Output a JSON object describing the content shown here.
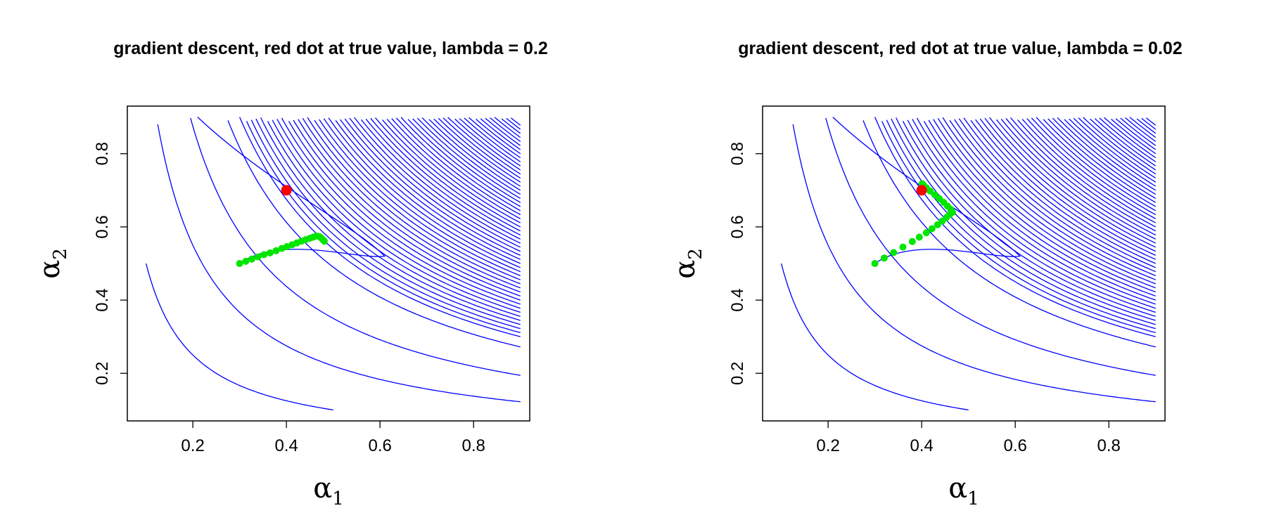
{
  "chart_data": [
    {
      "type": "contour",
      "title": "gradient descent, red dot at true value, lambda = 0.2",
      "xlabel": "α",
      "xlabel_sub": "1",
      "ylabel": "α",
      "ylabel_sub": "2",
      "xlim": [
        0.06,
        0.92
      ],
      "ylim": [
        0.07,
        0.93
      ],
      "xticks": [
        0.2,
        0.4,
        0.6,
        0.8
      ],
      "yticks": [
        0.2,
        0.4,
        0.6,
        0.8
      ],
      "xtick_labels": [
        "0.2",
        "0.4",
        "0.6",
        "0.8"
      ],
      "ytick_labels": [
        "0.2",
        "0.4",
        "0.6",
        "0.8"
      ],
      "contour_color": "#0000ff",
      "true_value": {
        "x": 0.4,
        "y": 0.7,
        "color": "#ff0000"
      },
      "path_color": "#00e600",
      "path": [
        [
          0.3,
          0.5
        ],
        [
          0.313,
          0.506
        ],
        [
          0.326,
          0.512
        ],
        [
          0.339,
          0.518
        ],
        [
          0.352,
          0.524
        ],
        [
          0.365,
          0.529
        ],
        [
          0.378,
          0.535
        ],
        [
          0.39,
          0.541
        ],
        [
          0.401,
          0.546
        ],
        [
          0.412,
          0.551
        ],
        [
          0.422,
          0.556
        ],
        [
          0.432,
          0.561
        ],
        [
          0.441,
          0.565
        ],
        [
          0.45,
          0.569
        ],
        [
          0.457,
          0.572
        ],
        [
          0.464,
          0.575
        ],
        [
          0.47,
          0.574
        ],
        [
          0.474,
          0.57
        ],
        [
          0.478,
          0.565
        ],
        [
          0.481,
          0.561
        ]
      ]
    },
    {
      "type": "contour",
      "title": "gradient descent, red dot at true value, lambda = 0.02",
      "xlabel": "α",
      "xlabel_sub": "1",
      "ylabel": "α",
      "ylabel_sub": "2",
      "xlim": [
        0.06,
        0.92
      ],
      "ylim": [
        0.07,
        0.93
      ],
      "xticks": [
        0.2,
        0.4,
        0.6,
        0.8
      ],
      "yticks": [
        0.2,
        0.4,
        0.6,
        0.8
      ],
      "xtick_labels": [
        "0.2",
        "0.4",
        "0.6",
        "0.8"
      ],
      "ytick_labels": [
        "0.2",
        "0.4",
        "0.6",
        "0.8"
      ],
      "contour_color": "#0000ff",
      "true_value": {
        "x": 0.4,
        "y": 0.7,
        "color": "#ff0000"
      },
      "path_color": "#00e600",
      "path": [
        [
          0.3,
          0.5
        ],
        [
          0.32,
          0.515
        ],
        [
          0.34,
          0.53
        ],
        [
          0.36,
          0.545
        ],
        [
          0.38,
          0.56
        ],
        [
          0.395,
          0.572
        ],
        [
          0.41,
          0.584
        ],
        [
          0.422,
          0.595
        ],
        [
          0.434,
          0.606
        ],
        [
          0.444,
          0.616
        ],
        [
          0.453,
          0.626
        ],
        [
          0.46,
          0.634
        ],
        [
          0.466,
          0.64
        ],
        [
          0.462,
          0.648
        ],
        [
          0.455,
          0.657
        ],
        [
          0.447,
          0.667
        ],
        [
          0.438,
          0.677
        ],
        [
          0.428,
          0.688
        ],
        [
          0.418,
          0.698
        ],
        [
          0.41,
          0.707
        ],
        [
          0.404,
          0.714
        ],
        [
          0.401,
          0.718
        ]
      ]
    }
  ]
}
